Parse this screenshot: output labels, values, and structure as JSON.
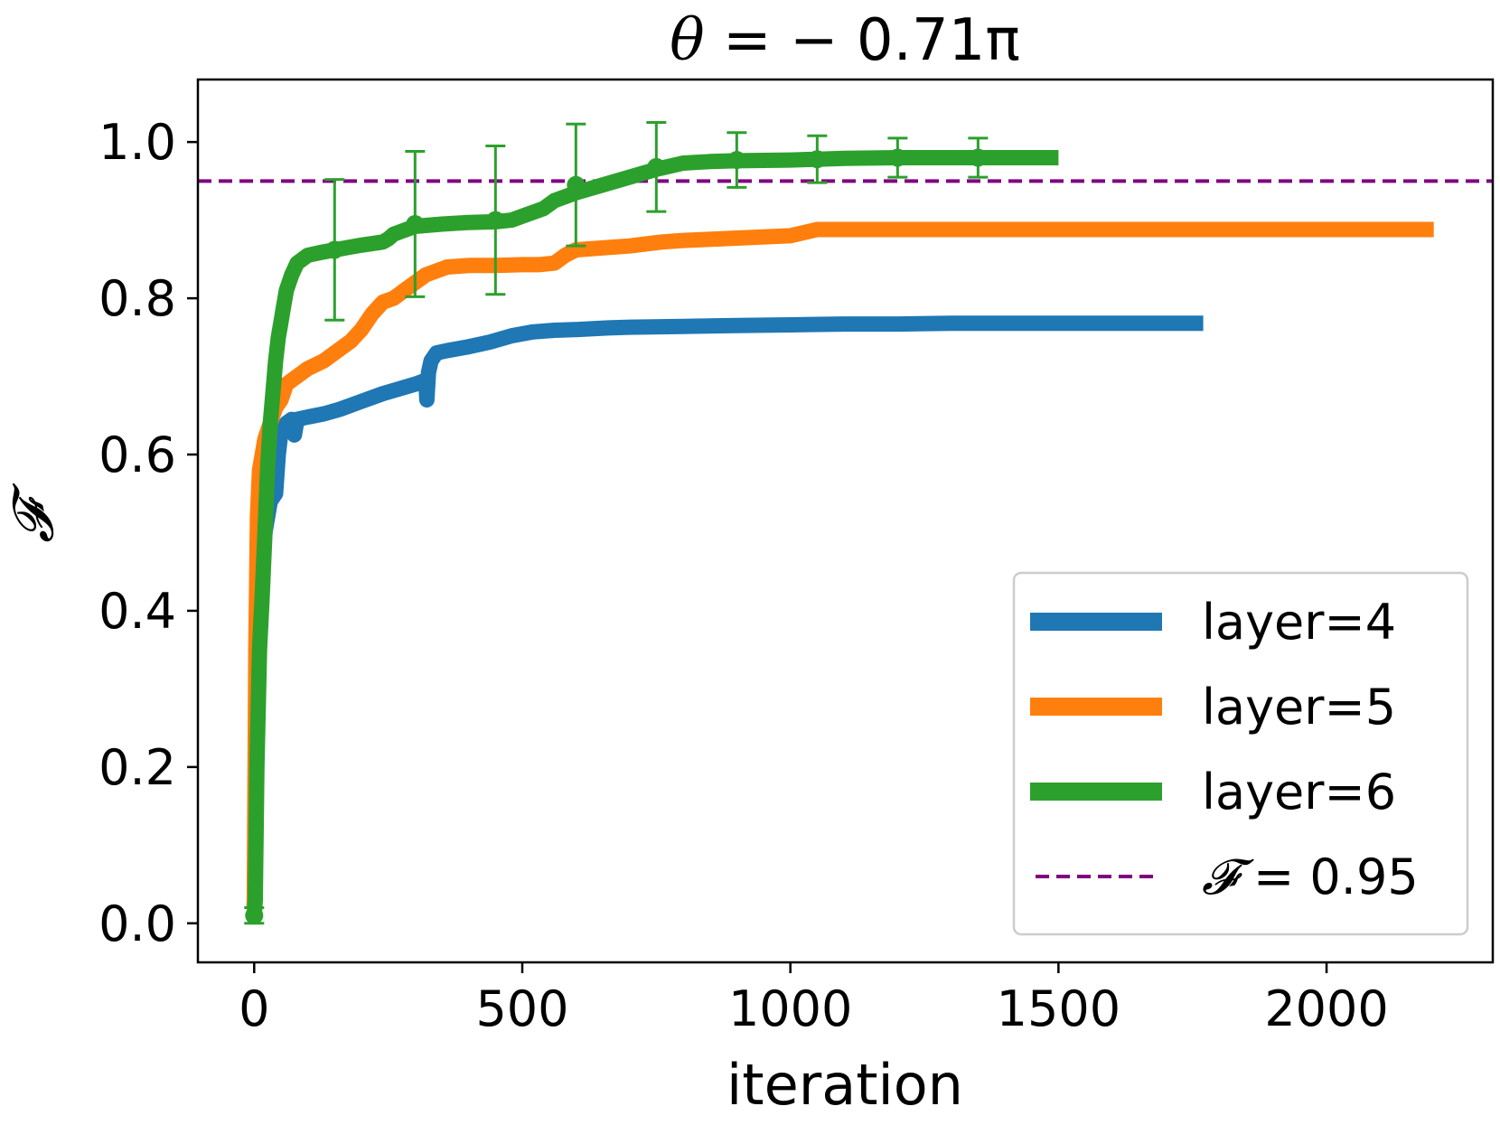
{
  "chart_data": {
    "type": "line",
    "title_symbol": "θ",
    "title_value": " = − 0.71π",
    "xlabel": "iteration",
    "ylabel": "𝓕",
    "xlim": [
      -105,
      2310
    ],
    "ylim": [
      -0.05,
      1.08
    ],
    "xticks": [
      0,
      500,
      1000,
      1500,
      2000
    ],
    "xtick_labels": [
      "0",
      "500",
      "1000",
      "1500",
      "2000"
    ],
    "yticks": [
      0.0,
      0.2,
      0.4,
      0.6,
      0.8,
      1.0
    ],
    "ytick_labels": [
      "0.0",
      "0.2",
      "0.4",
      "0.6",
      "0.8",
      "1.0"
    ],
    "legend_position": "lower-right",
    "series": [
      {
        "name": "layer=4",
        "color": "#1f77b4",
        "x": [
          0,
          5,
          10,
          20,
          30,
          40,
          45,
          50,
          60,
          70,
          75,
          80,
          100,
          130,
          160,
          200,
          240,
          280,
          300,
          320,
          322,
          325,
          330,
          340,
          360,
          400,
          440,
          480,
          520,
          560,
          600,
          660,
          700,
          800,
          900,
          1000,
          1100,
          1200,
          1300,
          1400,
          1500,
          1600,
          1700,
          1770
        ],
        "y": [
          0.02,
          0.25,
          0.4,
          0.5,
          0.54,
          0.55,
          0.6,
          0.63,
          0.64,
          0.645,
          0.625,
          0.645,
          0.648,
          0.652,
          0.658,
          0.668,
          0.678,
          0.686,
          0.69,
          0.695,
          0.67,
          0.705,
          0.72,
          0.73,
          0.733,
          0.738,
          0.744,
          0.752,
          0.757,
          0.759,
          0.76,
          0.762,
          0.763,
          0.764,
          0.765,
          0.766,
          0.767,
          0.767,
          0.768,
          0.768,
          0.768,
          0.768,
          0.768,
          0.768
        ]
      },
      {
        "name": "layer=5",
        "color": "#ff7f0e",
        "x": [
          0,
          3,
          6,
          10,
          15,
          20,
          30,
          40,
          50,
          60,
          80,
          100,
          130,
          160,
          180,
          200,
          220,
          240,
          260,
          280,
          300,
          320,
          340,
          360,
          400,
          450,
          500,
          530,
          560,
          580,
          600,
          700,
          760,
          800,
          900,
          1000,
          1050,
          1100,
          1200,
          1400,
          1600,
          1800,
          2000,
          2200
        ],
        "y": [
          0.02,
          0.35,
          0.52,
          0.58,
          0.6,
          0.62,
          0.64,
          0.66,
          0.67,
          0.69,
          0.7,
          0.71,
          0.72,
          0.735,
          0.745,
          0.76,
          0.78,
          0.795,
          0.8,
          0.81,
          0.82,
          0.83,
          0.835,
          0.84,
          0.842,
          0.842,
          0.843,
          0.843,
          0.845,
          0.855,
          0.862,
          0.867,
          0.872,
          0.874,
          0.877,
          0.88,
          0.888,
          0.888,
          0.888,
          0.888,
          0.888,
          0.888,
          0.888,
          0.888
        ]
      },
      {
        "name": "layer=6",
        "color": "#2ca02c",
        "x": [
          0,
          2,
          5,
          10,
          15,
          20,
          25,
          30,
          35,
          40,
          45,
          50,
          55,
          60,
          70,
          80,
          100,
          120,
          150,
          200,
          240,
          250,
          260,
          300,
          350,
          400,
          450,
          480,
          500,
          540,
          560,
          600,
          650,
          700,
          750,
          800,
          850,
          900,
          1000,
          1050,
          1100,
          1200,
          1300,
          1350,
          1400,
          1500
        ],
        "y": [
          0.01,
          0.03,
          0.2,
          0.35,
          0.42,
          0.5,
          0.58,
          0.64,
          0.68,
          0.72,
          0.75,
          0.77,
          0.79,
          0.81,
          0.83,
          0.845,
          0.855,
          0.858,
          0.862,
          0.868,
          0.872,
          0.876,
          0.882,
          0.892,
          0.895,
          0.897,
          0.898,
          0.9,
          0.905,
          0.915,
          0.925,
          0.935,
          0.945,
          0.955,
          0.965,
          0.973,
          0.975,
          0.976,
          0.977,
          0.978,
          0.979,
          0.98,
          0.98,
          0.98,
          0.98,
          0.98
        ]
      }
    ],
    "error_bars": {
      "series": "layer=6",
      "color": "#2ca02c",
      "x": [
        0,
        150,
        300,
        450,
        600,
        750,
        900,
        1050,
        1200,
        1350
      ],
      "y": [
        0.01,
        0.862,
        0.895,
        0.9,
        0.945,
        0.968,
        0.977,
        0.978,
        0.98,
        0.98
      ],
      "err": [
        0.01,
        0.09,
        0.093,
        0.095,
        0.078,
        0.057,
        0.035,
        0.03,
        0.025,
        0.025
      ]
    },
    "reference_line": {
      "y": 0.95,
      "color": "#800080",
      "style": "dashed",
      "label_symbol": "𝓕",
      "label_value": " = 0.95"
    }
  }
}
